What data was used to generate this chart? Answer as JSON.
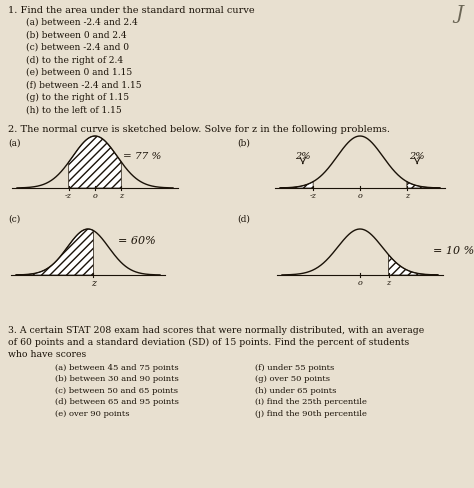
{
  "background_color": "#c8bfb0",
  "paper_color": "#e8e0d0",
  "text_color": "#1a1208",
  "title1": "1. Find the area under the standard normal curve",
  "items1": [
    "(a) between -2.4 and 2.4",
    "(b) between 0 and 2.4",
    "(c) between -2.4 and 0",
    "(d) to the right of 2.4",
    "(e) between 0 and 1.15",
    "(f) between -2.4 and 1.15",
    "(g) to the right of 1.15",
    "(h) to the left of 1.15"
  ],
  "title2": "2. The normal curve is sketched below. Solve for z in the following problems.",
  "annotation_a": "= 77 %",
  "annotation_b_left": "2%",
  "annotation_b_right": "2%",
  "annotation_c": "= 60%",
  "annotation_d": "= 10 %",
  "title3_line1": "3. A certain STAT 208 exam had scores that were normally distributed, with an average",
  "title3_line2": "of 60 points and a standard deviation (SD) of 15 points. Find the percent of students",
  "title3_line3": "who have scores",
  "items3_left": [
    "(a) between 45 and 75 points",
    "(b) between 30 and 90 points",
    "(c) between 50 and 65 points",
    "(d) between 65 and 95 points",
    "(e) over 90 points"
  ],
  "items3_right": [
    "(f) under 55 points",
    "(g) over 50 points",
    "(h) under 65 points",
    "(i) find the 25th percentile",
    "(j) find the 90th percentile"
  ]
}
